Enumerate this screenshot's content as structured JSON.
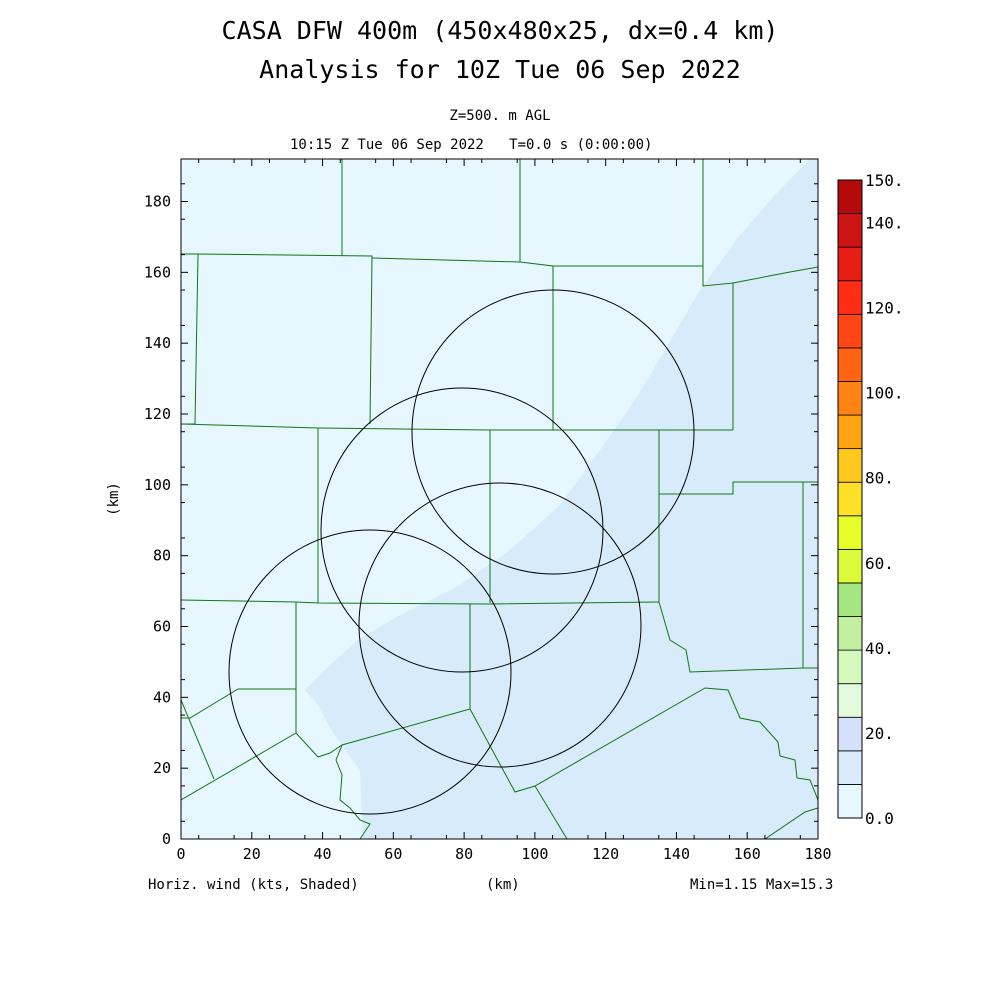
{
  "header": {
    "title_line1": "CASA DFW 400m (450x480x25, dx=0.4 km)",
    "title_line2": "Analysis for 10Z Tue 06 Sep 2022",
    "level": "Z=500. m AGL",
    "time": "10:15 Z Tue 06 Sep 2022   T=0.0 s (0:00:00)"
  },
  "axes": {
    "x_label": "(km)",
    "y_label": "(km)",
    "x_range": [
      0,
      180
    ],
    "y_range": [
      0,
      192
    ],
    "x_ticks": [
      "0",
      "20",
      "40",
      "60",
      "80",
      "100",
      "120",
      "140",
      "160",
      "180"
    ],
    "y_ticks": [
      "0",
      "20",
      "40",
      "60",
      "80",
      "100",
      "120",
      "140",
      "160",
      "180"
    ]
  },
  "colorbar": {
    "labels": [
      "0.0",
      "20.",
      "40.",
      "60.",
      "80.",
      "100.",
      "120.",
      "140.",
      "150."
    ],
    "colors": [
      "#e6f7ff",
      "#d8ecfc",
      "#d6e0fa",
      "#e2fbdc",
      "#d4f8be",
      "#c2f0a0",
      "#a6e682",
      "#dcfa3c",
      "#e6ff28",
      "#ffe028",
      "#ffc81e",
      "#ffa514",
      "#ff8214",
      "#ff6414",
      "#ff4614",
      "#ff2d14",
      "#e61e14",
      "#cd1414",
      "#b40a0a"
    ]
  },
  "field": {
    "background_color": "#e6f7ff",
    "band_color": "#d7ebfb",
    "county_line_color": "#117711",
    "ring_color": "#000000"
  },
  "footer": {
    "left": "Horiz. wind (kts, Shaded)",
    "mid": "(km)",
    "right": "Min=1.15 Max=15.3"
  }
}
